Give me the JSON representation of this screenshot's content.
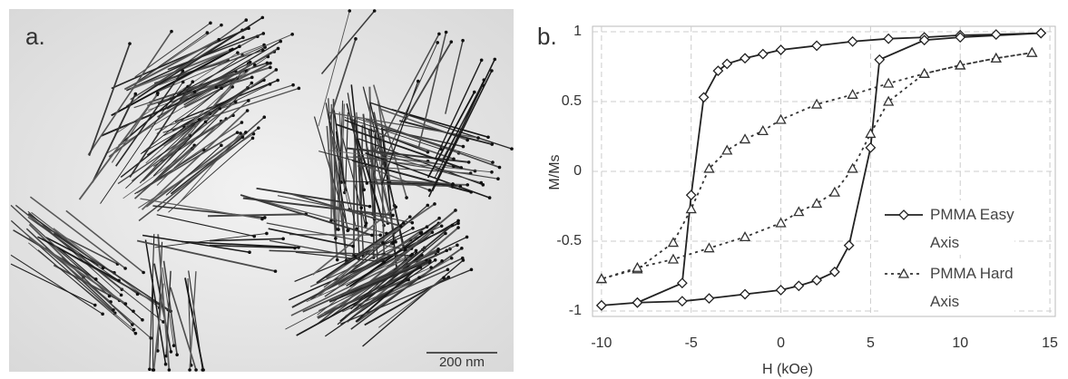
{
  "figure": {
    "panel_a_label": "a.",
    "panel_b_label": "b.",
    "scale_bar": "200 nm"
  },
  "chart_data": {
    "type": "line",
    "xlabel": "H (kOe)",
    "ylabel": "M/Ms",
    "xlim": [
      -10.5,
      15.3
    ],
    "xticks": [
      -10,
      -5,
      0,
      5,
      10,
      15
    ],
    "ylim": [
      -1,
      1
    ],
    "yticks": [
      1,
      0.5,
      0,
      -0.5,
      -1
    ],
    "grid": true,
    "legend": "right",
    "series": [
      {
        "name": "PMMA Easy Axis",
        "color": "#222222",
        "marker": "diamond",
        "dash": "solid",
        "x": [
          14.5,
          12,
          10,
          8,
          6,
          4,
          2,
          0,
          -1,
          -2,
          -3,
          -3.5,
          -4.3,
          -5,
          -5.5,
          -8,
          -10,
          -10,
          -8,
          -5.5,
          -4,
          -2,
          0,
          1,
          2,
          3,
          3.8,
          5,
          5.5,
          8,
          10,
          14.5
        ],
        "values": [
          0.99,
          0.98,
          0.975,
          0.96,
          0.95,
          0.93,
          0.9,
          0.87,
          0.84,
          0.81,
          0.77,
          0.72,
          0.53,
          -0.17,
          -0.8,
          -0.94,
          -0.96,
          -0.96,
          -0.94,
          -0.93,
          -0.91,
          -0.88,
          -0.85,
          -0.82,
          -0.78,
          -0.72,
          -0.53,
          0.17,
          0.8,
          0.94,
          0.96,
          0.99
        ]
      },
      {
        "name": "PMMA Hard Axis",
        "color": "#333333",
        "marker": "triangle",
        "dash": "dotted",
        "x": [
          14,
          12,
          10,
          8,
          6,
          4,
          2,
          0,
          -1,
          -2,
          -3,
          -4,
          -5,
          -6,
          -8,
          -10,
          -10,
          -8,
          -6,
          -4,
          -2,
          0,
          1,
          2,
          3,
          4,
          5,
          6,
          8,
          10,
          12,
          14
        ],
        "values": [
          0.85,
          0.81,
          0.76,
          0.7,
          0.63,
          0.55,
          0.48,
          0.37,
          0.29,
          0.23,
          0.15,
          0.02,
          -0.27,
          -0.51,
          -0.7,
          -0.77,
          -0.77,
          -0.69,
          -0.63,
          -0.55,
          -0.47,
          -0.37,
          -0.29,
          -0.23,
          -0.15,
          0.02,
          0.27,
          0.5,
          0.7,
          0.76,
          0.81,
          0.85
        ]
      }
    ]
  }
}
